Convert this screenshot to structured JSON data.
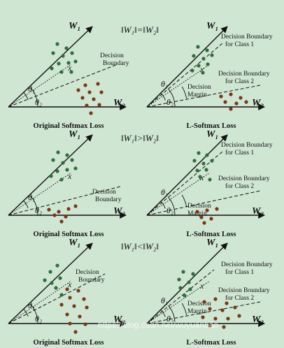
{
  "colors": {
    "background": "#cfe6d2",
    "dot_class1": "#2f6e3b",
    "dot_class2": "#7a3718",
    "line": "#111111"
  },
  "rows": [
    {
      "condition": "‖W₁‖=‖W₂‖",
      "left": {
        "w1": "W₁",
        "w2": "W₂",
        "theta1": "θ₁",
        "theta2": "θ₂",
        "x": "x",
        "boundary": [
          "Decision",
          "Boundary"
        ],
        "caption": "Original Softmax Loss"
      },
      "right": {
        "w1": "W₁",
        "w2": "W₂",
        "theta1": "θ₁",
        "theta2": "θ₂",
        "x": "x",
        "boundary1": [
          "Decision Boundary",
          "for Class 1"
        ],
        "boundary2": [
          "Decision Boundary",
          "for Class 2"
        ],
        "margin": [
          "Decision",
          "Margin"
        ],
        "caption": "L-Softmax Loss"
      }
    },
    {
      "condition": "‖W₁‖>‖W₂‖",
      "left": {
        "w1": "W₁",
        "w2": "W₂",
        "theta1": "θ₁",
        "theta2": "θ₂",
        "x": "x",
        "boundary": [
          "Decision",
          "Boundary"
        ],
        "caption": "Original Softmax Loss"
      },
      "right": {
        "w1": "W₁",
        "w2": "W₂",
        "theta1": "θ₁",
        "theta2": "θ₂",
        "x": "x",
        "boundary1": [
          "Decision Boundary",
          "for Class 1"
        ],
        "boundary2": [
          "Decision Boundary",
          "for Class 2"
        ],
        "margin": [
          "Decision",
          "Margin"
        ],
        "caption": "L-Softmax Loss"
      }
    },
    {
      "condition": "‖W₁‖<‖W₂‖",
      "left": {
        "w1": "W₁",
        "w2": "W₂",
        "theta1": "θ₁",
        "theta2": "θ₂",
        "x": "x",
        "boundary": [
          "Decision",
          "Boundary"
        ],
        "caption": "Original Softmax Loss"
      },
      "right": {
        "w1": "W₁",
        "w2": "W₂",
        "theta1": "θ₁",
        "theta2": "θ₂",
        "x": "x",
        "boundary1": [
          "Decision Boundary",
          "for Class 1"
        ],
        "boundary2": [
          "Decision Boundary",
          "for Class 2"
        ],
        "margin": [
          "Decision",
          "Margin"
        ],
        "caption": "L-Softmax Loss"
      }
    }
  ],
  "watermark": "https://blog.csdn.net/wuyuanbao"
}
